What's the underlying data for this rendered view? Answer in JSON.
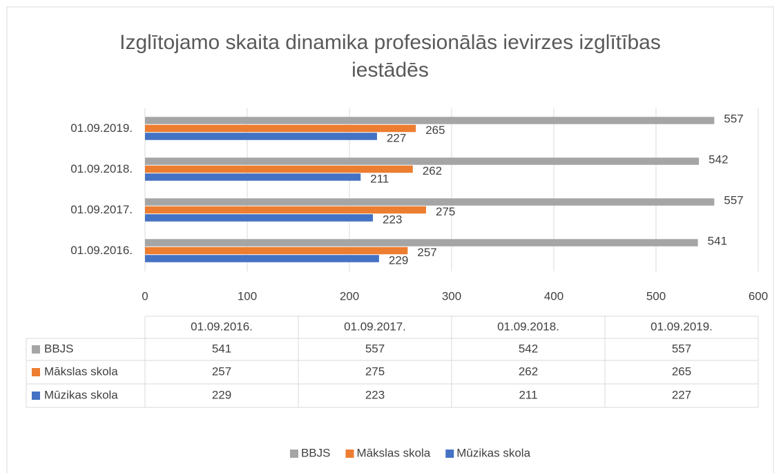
{
  "chart_data": {
    "type": "bar",
    "orientation": "horizontal",
    "title": "Izglītojamo skaita dinamika profesionālās ievirzes izglītības iestādēs",
    "categories": [
      "01.09.2016.",
      "01.09.2017.",
      "01.09.2018.",
      "01.09.2019."
    ],
    "series": [
      {
        "name": "BBJS",
        "color": "#a5a5a5",
        "values": [
          541,
          557,
          542,
          557
        ]
      },
      {
        "name": "Mākslas skola",
        "color": "#ed7d31",
        "values": [
          257,
          275,
          262,
          265
        ]
      },
      {
        "name": "Mūzikas skola",
        "color": "#4472c4",
        "values": [
          229,
          223,
          211,
          227
        ]
      }
    ],
    "xlim": [
      0,
      600
    ],
    "xticks": [
      0,
      100,
      200,
      300,
      400,
      500,
      600
    ],
    "grid": true,
    "legend": "bottom",
    "data_table": true
  }
}
